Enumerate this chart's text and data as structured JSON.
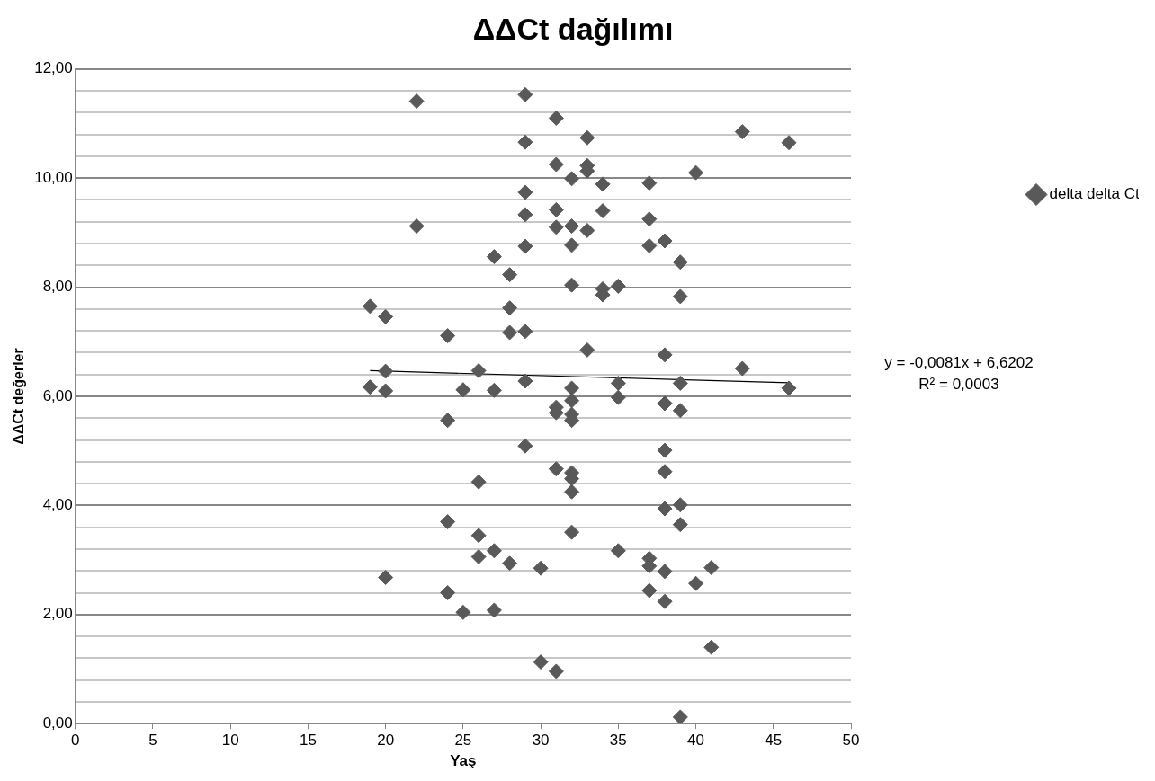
{
  "chart_data": {
    "type": "scatter",
    "title": "ΔΔCt dağılımı",
    "xlabel": "Yaş",
    "ylabel": "ΔΔCt değerler",
    "xlim": [
      0,
      50
    ],
    "xticks": [
      0,
      5,
      10,
      15,
      20,
      25,
      30,
      35,
      40,
      45,
      50
    ],
    "ylim": [
      0,
      12
    ],
    "yticks": [
      {
        "value": 0,
        "label": "0,00"
      },
      {
        "value": 0.4,
        "label": null
      },
      {
        "value": 0.8,
        "label": null
      },
      {
        "value": 1.2,
        "label": null
      },
      {
        "value": 1.6,
        "label": null
      },
      {
        "value": 2,
        "label": "2,00"
      },
      {
        "value": 2.4,
        "label": null
      },
      {
        "value": 2.8,
        "label": null
      },
      {
        "value": 3.2,
        "label": null
      },
      {
        "value": 3.6,
        "label": null
      },
      {
        "value": 4,
        "label": "4,00"
      },
      {
        "value": 4.4,
        "label": null
      },
      {
        "value": 4.8,
        "label": null
      },
      {
        "value": 5.2,
        "label": null
      },
      {
        "value": 5.6,
        "label": null
      },
      {
        "value": 6,
        "label": "6,00"
      },
      {
        "value": 6.4,
        "label": null
      },
      {
        "value": 6.8,
        "label": null
      },
      {
        "value": 7.2,
        "label": null
      },
      {
        "value": 7.6,
        "label": null
      },
      {
        "value": 8,
        "label": "8,00"
      },
      {
        "value": 8.4,
        "label": null
      },
      {
        "value": 8.8,
        "label": null
      },
      {
        "value": 9.2,
        "label": null
      },
      {
        "value": 9.6,
        "label": null
      },
      {
        "value": 10,
        "label": "10,00"
      },
      {
        "value": 10.4,
        "label": null
      },
      {
        "value": 10.8,
        "label": null
      },
      {
        "value": 11.2,
        "label": null
      },
      {
        "value": 11.6,
        "label": null
      },
      {
        "value": 12,
        "label": "12,00"
      }
    ],
    "grid": "y",
    "legend": "right",
    "annotations": [
      "y = -0,0081x + 6,6202",
      "R² = 0,0003"
    ],
    "series": [
      {
        "name": "delta delta Ct",
        "marker": "diamond",
        "color": "#595959",
        "x": [
          22,
          29,
          31,
          33,
          29,
          31,
          33,
          33,
          32,
          34,
          29,
          31,
          29,
          34,
          22,
          31,
          32,
          33,
          29,
          32,
          27,
          28,
          32,
          34,
          34,
          19,
          20,
          28,
          24,
          28,
          29,
          33,
          20,
          26,
          29,
          19,
          20,
          25,
          27,
          32,
          43,
          40,
          37,
          37,
          37,
          38,
          39,
          35,
          39,
          38,
          43,
          35,
          39,
          38,
          46,
          46,
          31,
          31,
          32,
          32,
          32,
          24,
          29,
          31,
          32,
          32,
          32,
          26,
          24,
          32,
          20,
          26,
          27,
          26,
          28,
          30,
          24,
          25,
          27,
          30,
          31,
          35,
          38,
          39,
          38,
          38,
          38,
          39,
          39,
          35,
          37,
          37,
          38,
          41,
          40,
          37,
          38,
          41,
          39
        ],
        "values": [
          11.41,
          11.53,
          11.1,
          10.74,
          10.66,
          10.25,
          10.23,
          10.13,
          9.99,
          9.89,
          9.74,
          9.42,
          9.33,
          9.4,
          9.12,
          9.1,
          9.12,
          9.04,
          8.75,
          8.77,
          8.56,
          8.23,
          8.04,
          7.97,
          7.86,
          7.65,
          7.46,
          7.62,
          7.11,
          7.17,
          7.19,
          6.85,
          6.46,
          6.47,
          6.28,
          6.17,
          6.1,
          6.12,
          6.11,
          6.15,
          10.85,
          10.1,
          9.91,
          9.25,
          8.76,
          8.85,
          8.46,
          8.02,
          7.83,
          6.76,
          6.51,
          6.24,
          6.24,
          5.87,
          10.65,
          6.15,
          5.8,
          5.7,
          5.92,
          5.67,
          5.56,
          5.56,
          5.09,
          4.67,
          4.6,
          4.49,
          4.25,
          4.43,
          3.7,
          3.51,
          2.68,
          3.45,
          3.17,
          3.06,
          2.94,
          2.85,
          2.4,
          2.04,
          2.08,
          1.13,
          0.96,
          5.98,
          5.01,
          5.74,
          4.62,
          3.94,
          5.87,
          4.01,
          3.65,
          3.17,
          3.03,
          2.89,
          2.79,
          2.86,
          2.57,
          2.44,
          2.24,
          1.4,
          0.12
        ]
      },
      {
        "type": "line",
        "color": "#000000",
        "x": [
          19,
          46
        ],
        "values": [
          6.47,
          6.25
        ]
      }
    ]
  }
}
